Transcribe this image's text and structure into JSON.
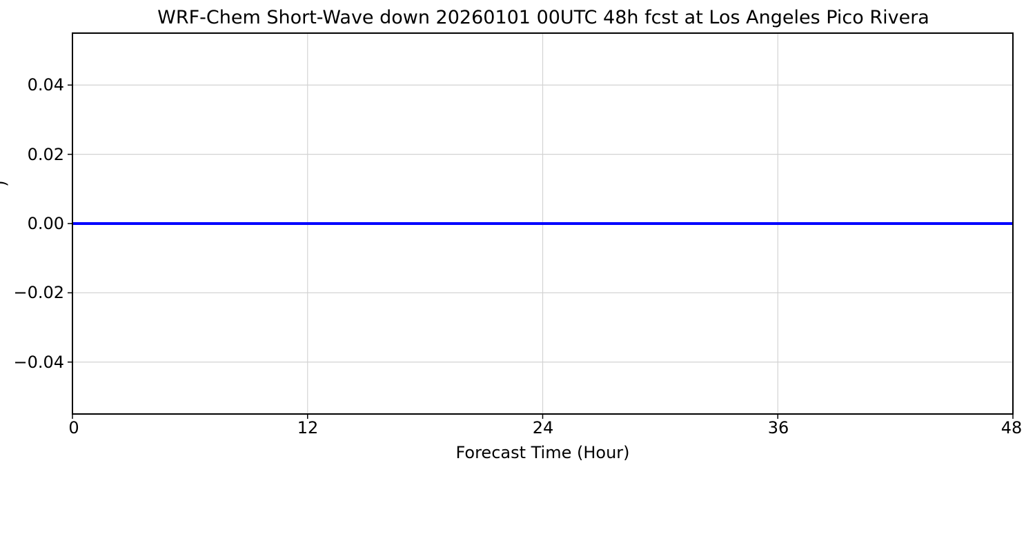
{
  "chart_data": {
    "type": "line",
    "title": "WRF-Chem Short-Wave down  20260101 00UTC 48h fcst at Los Angeles Pico Rivera",
    "xlabel": "Forecast Time (Hour)",
    "ylabel_fragment": ")",
    "x_range": [
      0,
      48
    ],
    "y_range": [
      -0.055,
      0.055
    ],
    "xticks": [
      0,
      12,
      24,
      36,
      48
    ],
    "xtick_labels": [
      "0",
      "12",
      "24",
      "36",
      "48"
    ],
    "yticks": [
      0.04,
      0.02,
      0.0,
      -0.02,
      -0.04
    ],
    "ytick_labels": [
      "0.04",
      "0.02",
      "0.00",
      "−0.02",
      "−0.04"
    ],
    "grid": true,
    "grid_color": "#d3d3d3",
    "spine_color": "#000000",
    "legend": "none",
    "series": [
      {
        "name": "Short-Wave down",
        "color": "#0000ff",
        "line_width": 4,
        "x": [
          0,
          48
        ],
        "values": [
          0.0,
          0.0
        ]
      }
    ]
  }
}
